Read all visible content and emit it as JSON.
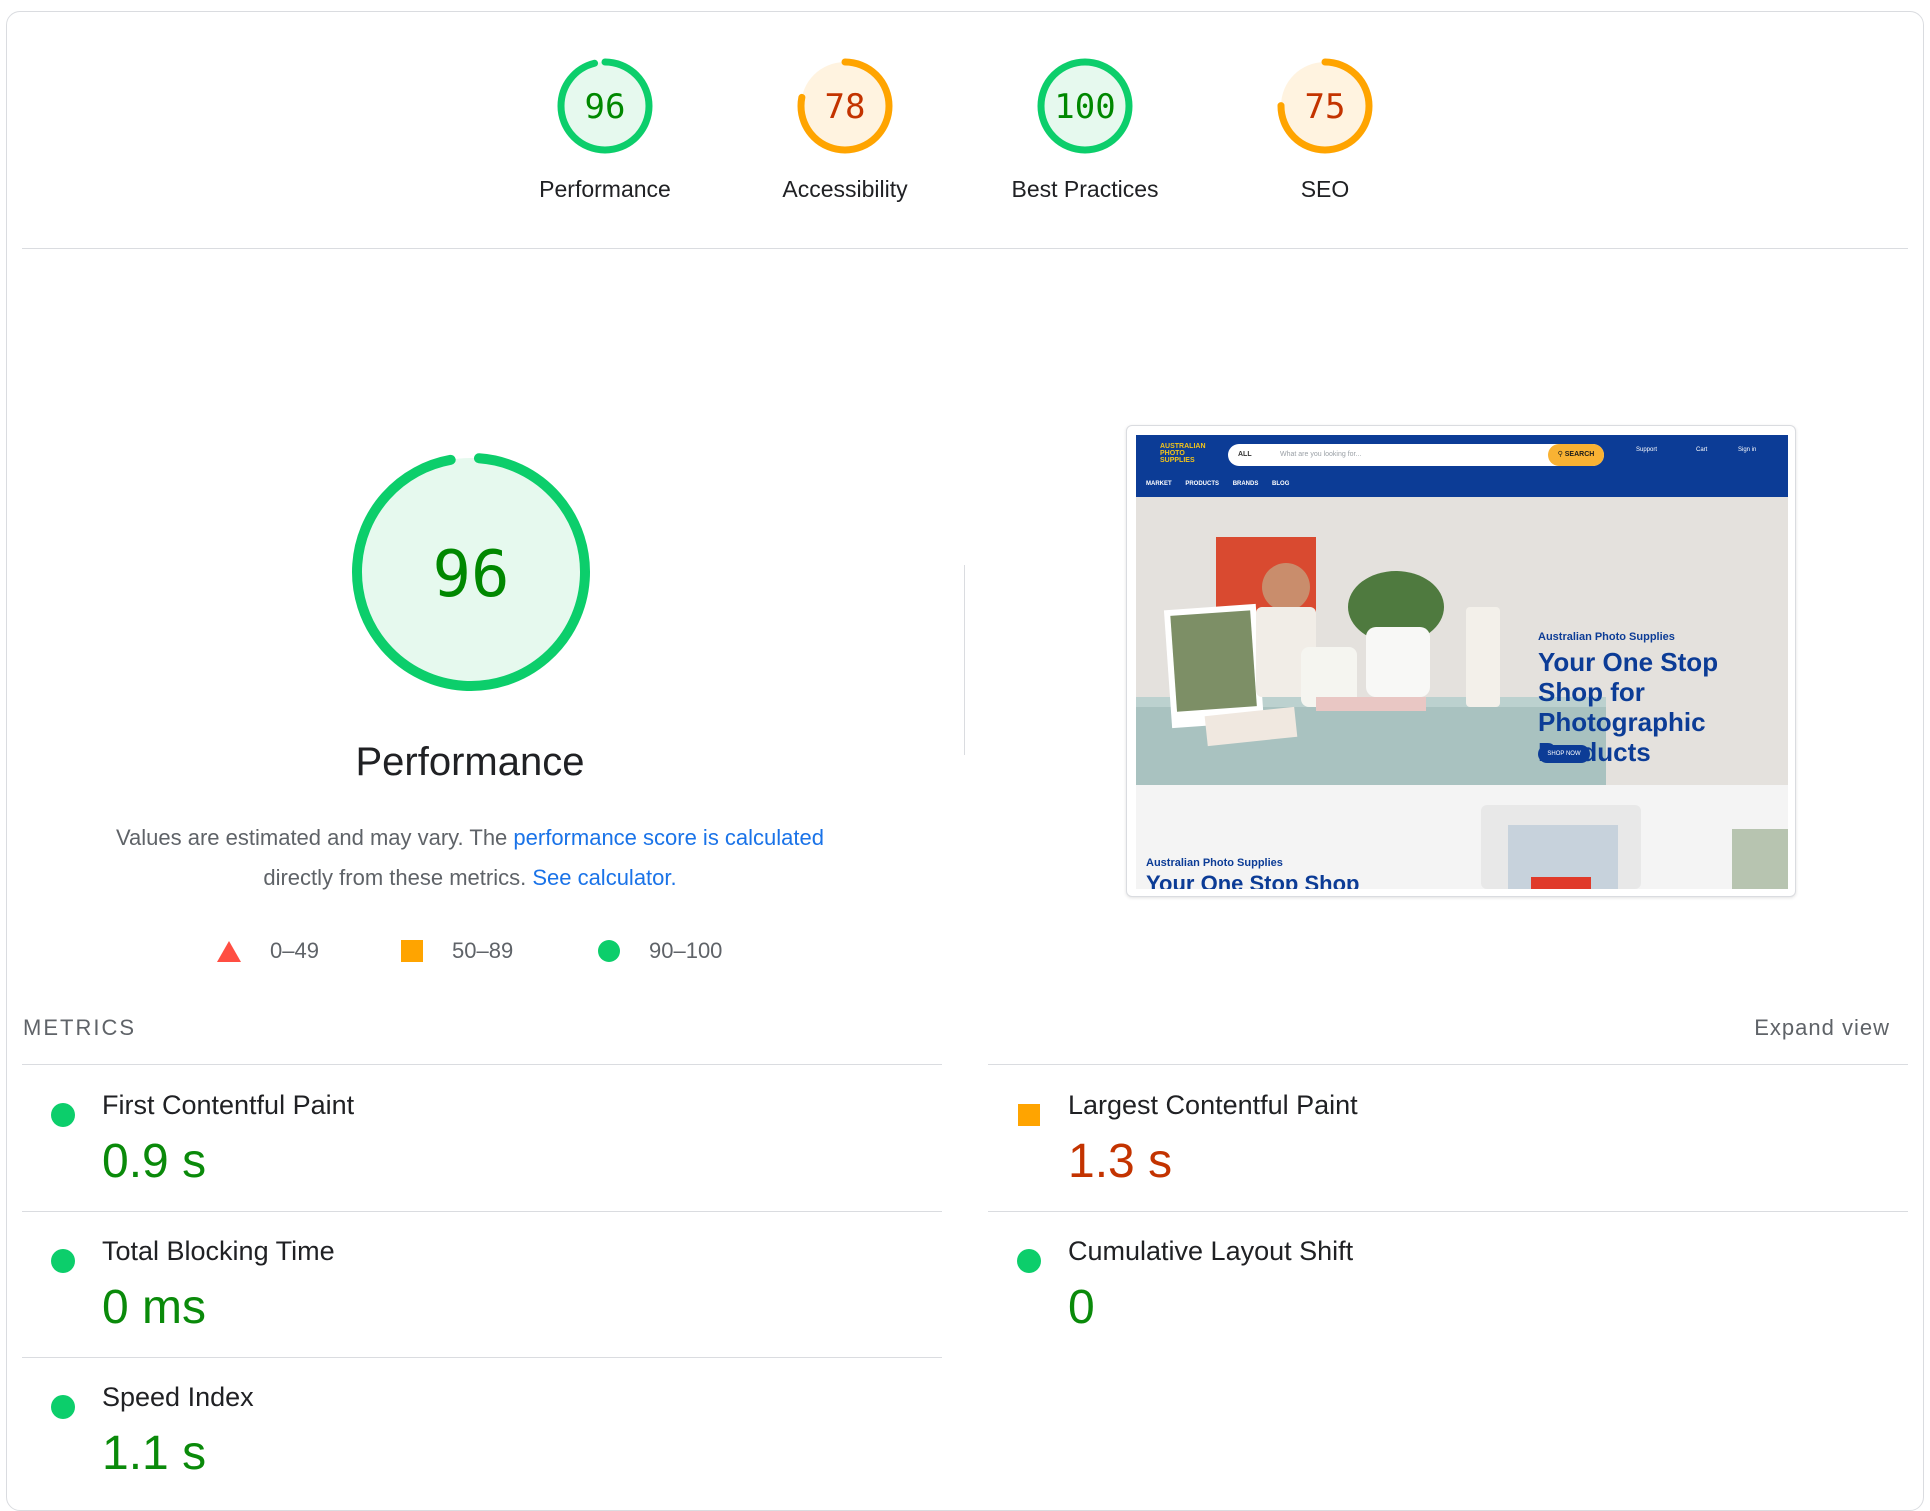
{
  "colors": {
    "pass": "#0cce6b",
    "pass_fill": "#e6f9ee",
    "pass_text": "#008800",
    "average": "#ffa400",
    "average_fill": "#fff3e0",
    "average_text": "#c33300",
    "fail": "#ff4e42",
    "link": "#1a73e8"
  },
  "score_gauges": [
    {
      "label": "Performance",
      "score": "96",
      "rating": "pass"
    },
    {
      "label": "Accessibility",
      "score": "78",
      "rating": "average"
    },
    {
      "label": "Best Practices",
      "score": "100",
      "rating": "pass"
    },
    {
      "label": "SEO",
      "score": "75",
      "rating": "average"
    }
  ],
  "performance": {
    "score": "96",
    "title": "Performance",
    "description_prefix": "Values are estimated and may vary. The ",
    "link1": "performance score is calculated",
    "description_middle": " directly from these metrics. ",
    "link2": "See calculator."
  },
  "legend": [
    {
      "range": "0–49",
      "icon": "triangle-icon",
      "rating": "fail"
    },
    {
      "range": "50–89",
      "icon": "square-icon",
      "rating": "average"
    },
    {
      "range": "90–100",
      "icon": "circle-icon",
      "rating": "pass"
    }
  ],
  "screenshot": {
    "logo_text": "AUSTRALIAN PHOTO SUPPLIES",
    "search_category": "ALL",
    "search_placeholder": "What are you looking for...",
    "search_button": "SEARCH",
    "support": "Support",
    "cart": "Cart",
    "sign_in": "Sign in",
    "menu": [
      "MARKET",
      "PRODUCTS",
      "BRANDS",
      "BLOG"
    ],
    "hero_subtitle": "Australian Photo Supplies",
    "hero_title": "Your One Stop Shop for Photographic Products",
    "hero_button": "SHOP NOW",
    "lower_subtitle": "Australian Photo Supplies",
    "lower_title": "Your One Stop Shop"
  },
  "metrics": {
    "section_label": "METRICS",
    "expand_label": "Expand view",
    "items": [
      {
        "name": "First Contentful Paint",
        "value": "0.9 s",
        "rating": "pass"
      },
      {
        "name": "Largest Contentful Paint",
        "value": "1.3 s",
        "rating": "average"
      },
      {
        "name": "Total Blocking Time",
        "value": "0 ms",
        "rating": "pass"
      },
      {
        "name": "Cumulative Layout Shift",
        "value": "0",
        "rating": "pass"
      },
      {
        "name": "Speed Index",
        "value": "1.1 s",
        "rating": "pass"
      }
    ]
  }
}
